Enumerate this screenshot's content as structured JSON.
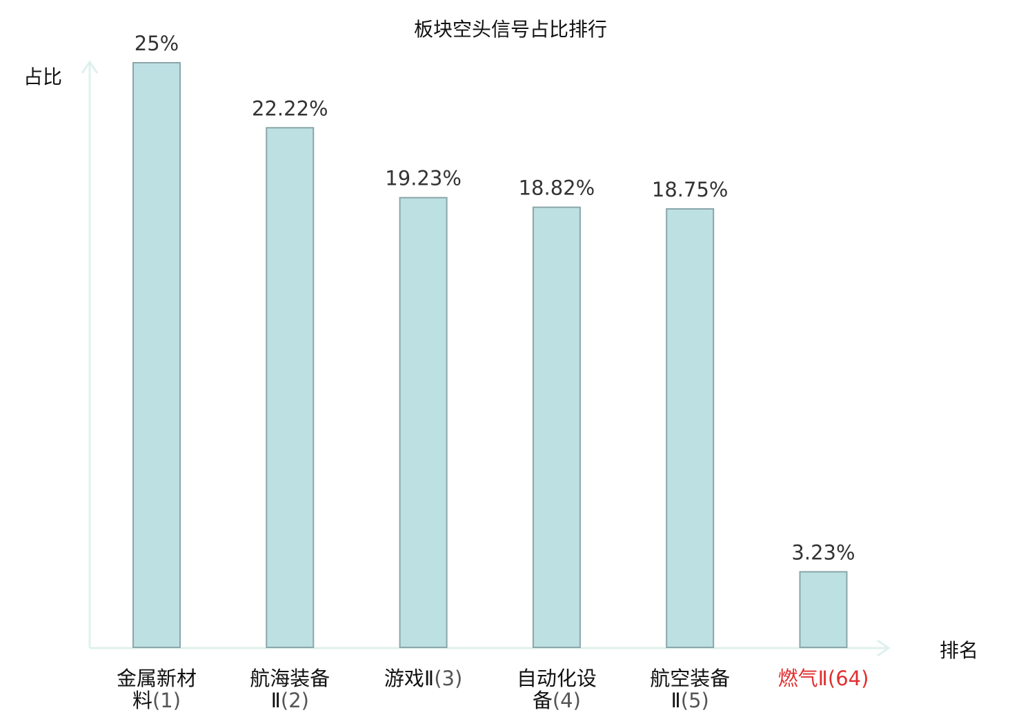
{
  "chart_data": {
    "type": "bar",
    "title": "板块空头信号占比排行",
    "ylabel": "占比",
    "xlabel": "排名",
    "ylim": [
      0,
      25
    ],
    "grid": false,
    "legend": "none",
    "categories": [
      {
        "lines": [
          "金属新材",
          "料"
        ],
        "rank": "(1)",
        "highlight": false
      },
      {
        "lines": [
          "航海装备",
          "Ⅱ"
        ],
        "rank": "(2)",
        "highlight": false
      },
      {
        "lines": [
          "游戏Ⅱ"
        ],
        "rank": "(3)",
        "highlight": false
      },
      {
        "lines": [
          "自动化设",
          "备"
        ],
        "rank": "(4)",
        "highlight": false
      },
      {
        "lines": [
          "航空装备",
          "Ⅱ"
        ],
        "rank": "(5)",
        "highlight": false
      },
      {
        "lines": [
          "燃气Ⅱ"
        ],
        "rank": "(64)",
        "highlight": true
      }
    ],
    "values": [
      25,
      22.22,
      19.23,
      18.82,
      18.75,
      3.23
    ],
    "value_labels": [
      "25%",
      "22.22%",
      "19.23%",
      "18.82%",
      "18.75%",
      "3.23%"
    ]
  },
  "colors": {
    "bar_fill": "#bde0e3",
    "bar_stroke": "#8aa6a8",
    "axis": "#dff0ee",
    "highlight": "#e03030"
  }
}
